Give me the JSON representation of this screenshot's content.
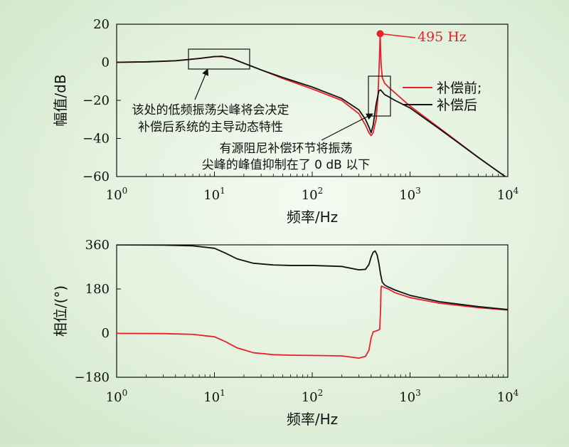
{
  "chart_data": [
    {
      "type": "line",
      "xscale": "log",
      "xlim": [
        1,
        10000
      ],
      "ylim": [
        -60,
        20
      ],
      "yticks": [
        20,
        0,
        -20,
        -40,
        -60
      ],
      "ytick_labels": [
        "20",
        "0",
        "−20",
        "−40",
        "−60"
      ],
      "xtick_bases": [
        "10",
        "10",
        "10",
        "10",
        "10"
      ],
      "xtick_exps": [
        "0",
        "1",
        "2",
        "3",
        "4"
      ],
      "xlabel": "频率/Hz",
      "ylabel": "幅值/dB",
      "legend": {
        "placement": "right",
        "entries": [
          "补偿前;",
          "补偿后"
        ]
      },
      "series": [
        {
          "name": "补偿前;",
          "color": "#e8202a",
          "x": [
            1,
            2,
            4,
            7,
            10,
            12,
            15,
            20,
            30,
            50,
            100,
            200,
            300,
            350,
            380,
            400,
            420,
            450,
            470,
            485,
            495,
            505,
            520,
            550,
            600,
            700,
            1000,
            2000,
            5000,
            10000
          ],
          "y": [
            0,
            0.2,
            0.8,
            2,
            3,
            3.1,
            2,
            -0.5,
            -4,
            -8.5,
            -14,
            -20,
            -27,
            -33,
            -37,
            -38.5,
            -37,
            -30,
            -18,
            0,
            15,
            0,
            -8,
            -11,
            -13,
            -16,
            -23,
            -34.5,
            -50,
            -61
          ]
        },
        {
          "name": "补偿后",
          "color": "#111111",
          "x": [
            1,
            2,
            4,
            7,
            10,
            12,
            15,
            20,
            30,
            50,
            100,
            200,
            300,
            350,
            380,
            400,
            420,
            450,
            480,
            500,
            520,
            550,
            600,
            700,
            1000,
            2000,
            5000,
            10000
          ],
          "y": [
            0,
            0.2,
            0.8,
            2,
            3,
            3.1,
            2,
            -0.5,
            -4,
            -8,
            -13,
            -19,
            -25,
            -30,
            -34,
            -37,
            -33,
            -22,
            -15,
            -14.5,
            -15.5,
            -17,
            -18,
            -20,
            -24,
            -35,
            -50,
            -61
          ]
        }
      ],
      "annotations": [
        {
          "text": "495 Hz",
          "color": "#e8202a",
          "x": 495,
          "y": 15
        },
        {
          "lines": [
            "该处的低频振荡尖峰将会决定",
            "补偿后系统的主导动态特性"
          ]
        },
        {
          "lines": [
            "有源阻尼补偿环节将振荡",
            "尖峰的峰值抑制在了 0 dB 以下"
          ]
        }
      ]
    },
    {
      "type": "line",
      "xscale": "log",
      "xlim": [
        1,
        10000
      ],
      "ylim": [
        -180,
        360
      ],
      "yticks": [
        360,
        180,
        0,
        -180
      ],
      "ytick_labels": [
        "360",
        "180",
        "0",
        "−180"
      ],
      "xtick_bases": [
        "10",
        "10",
        "10",
        "10",
        "10"
      ],
      "xtick_exps": [
        "0",
        "1",
        "2",
        "3",
        "4"
      ],
      "xlabel": "频率/Hz",
      "ylabel": "相位/(°)",
      "series": [
        {
          "name": "补偿前;",
          "color": "#e8202a",
          "x": [
            1,
            3,
            6,
            10,
            13,
            17,
            25,
            40,
            60,
            100,
            200,
            300,
            350,
            380,
            400,
            420,
            460,
            490,
            500,
            505,
            510,
            520,
            600,
            700,
            1000,
            2000,
            5000,
            10000
          ],
          "y": [
            -1,
            -2,
            -5,
            -15,
            -35,
            -60,
            -80,
            -88,
            -90,
            -91,
            -93,
            -102,
            -95,
            -70,
            -20,
            5,
            10,
            15,
            100,
            180,
            192,
            190,
            180,
            165,
            145,
            122,
            104,
            94
          ]
        },
        {
          "name": "补偿后",
          "color": "#111111",
          "x": [
            1,
            3,
            6,
            10,
            13,
            17,
            25,
            40,
            60,
            100,
            200,
            300,
            350,
            380,
            400,
            420,
            440,
            460,
            480,
            500,
            520,
            550,
            600,
            700,
            1000,
            2000,
            5000,
            10000
          ],
          "y": [
            360,
            359,
            356,
            346,
            326,
            303,
            285,
            278,
            276,
            276,
            272,
            258,
            260,
            280,
            310,
            330,
            335,
            320,
            285,
            240,
            208,
            196,
            188,
            176,
            154,
            128,
            108,
            96
          ]
        }
      ]
    }
  ]
}
